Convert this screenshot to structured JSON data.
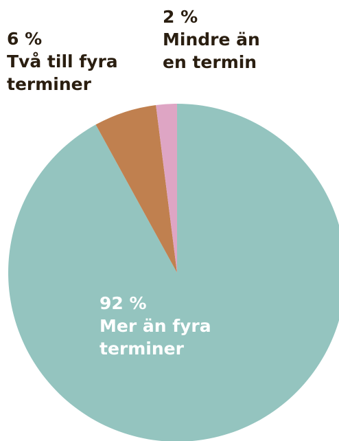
{
  "chart_data": {
    "type": "pie",
    "categories": [
      "Mer än fyra terminer",
      "Två till fyra terminer",
      "Mindre än en termin"
    ],
    "values": [
      92,
      6,
      2
    ],
    "value_labels": [
      "92 %",
      "6 %",
      "2 %"
    ],
    "colors": [
      "#94c4bf",
      "#c0804f",
      "#dea5c4"
    ]
  }
}
